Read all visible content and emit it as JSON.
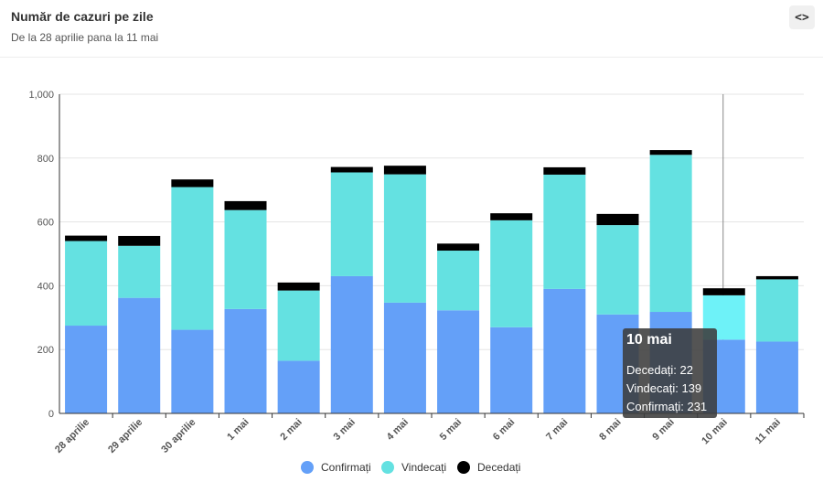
{
  "header": {
    "title": "Număr de cazuri pe zile",
    "subtitle": "De la 28 aprilie pana la 11 mai",
    "code_button_label": "<>"
  },
  "colors": {
    "confirmati": "#64a0f8",
    "vindecati": "#64e1e1",
    "decedati": "#000000",
    "highlight_vindecati": "#6ef2f8",
    "grid": "#e5e5e5",
    "axis": "#333333"
  },
  "chart_data": {
    "type": "bar",
    "stacked": true,
    "categories": [
      "28 aprilie",
      "29 aprilie",
      "30 aprilie",
      "1 mai",
      "2 mai",
      "3 mai",
      "4 mai",
      "5 mai",
      "6 mai",
      "7 mai",
      "8 mai",
      "9 mai",
      "10 mai",
      "11 mai"
    ],
    "series": [
      {
        "name": "Confirmați",
        "values": [
          275,
          362,
          262,
          327,
          165,
          430,
          347,
          323,
          270,
          390,
          310,
          318,
          231,
          225
        ]
      },
      {
        "name": "Vindecați",
        "values": [
          265,
          163,
          447,
          310,
          220,
          325,
          402,
          187,
          335,
          358,
          280,
          492,
          139,
          195
        ]
      },
      {
        "name": "Decedați",
        "values": [
          17,
          31,
          24,
          28,
          25,
          17,
          27,
          22,
          22,
          23,
          35,
          15,
          22,
          10
        ]
      }
    ],
    "ylim": [
      0,
      1000
    ],
    "yticks": [
      0,
      200,
      400,
      600,
      800,
      1000
    ],
    "ytick_labels": [
      "0",
      "200",
      "400",
      "600",
      "800",
      "1,000"
    ],
    "legend": [
      "Confirmați",
      "Vindecați",
      "Decedați"
    ],
    "legend_position": "bottom-center",
    "grid": true,
    "highlighted_category": "10 mai"
  },
  "tooltip": {
    "title": "10 mai",
    "lines": [
      "Decedați: 22",
      "Vindecați: 139",
      "Confirmați: 231"
    ]
  }
}
